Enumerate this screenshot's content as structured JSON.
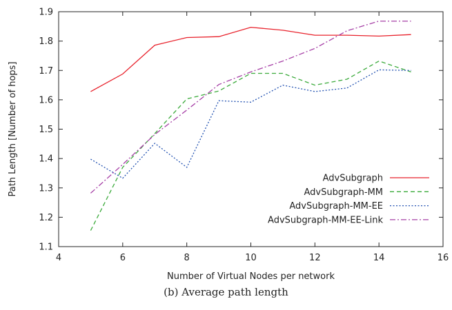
{
  "caption": "(b) Average path length",
  "chart_data": {
    "type": "line",
    "xlabel": "Number of Virtual Nodes per network",
    "ylabel": "Path Length [Number of hops]",
    "xlim": [
      4,
      16
    ],
    "ylim": [
      1.1,
      1.9
    ],
    "xticks": [
      "4",
      "6",
      "8",
      "10",
      "12",
      "14",
      "16"
    ],
    "yticks": [
      "1.1",
      "1.2",
      "1.3",
      "1.4",
      "1.5",
      "1.6",
      "1.7",
      "1.8",
      "1.9"
    ],
    "grid": false,
    "legend_position": "bottom-right",
    "x": [
      5,
      6,
      7,
      8,
      9,
      10,
      11,
      12,
      13,
      14,
      15
    ],
    "series": [
      {
        "name": "AdvSubgraph",
        "color": "#e8202a",
        "dash": "solid",
        "values": [
          1.628,
          1.688,
          1.786,
          1.812,
          1.815,
          1.847,
          1.837,
          1.82,
          1.82,
          1.817,
          1.822
        ]
      },
      {
        "name": "AdvSubgraph-MM",
        "color": "#3aaa3a",
        "dash": "dashed",
        "values": [
          1.155,
          1.37,
          1.485,
          1.603,
          1.63,
          1.69,
          1.69,
          1.65,
          1.67,
          1.732,
          1.695
        ]
      },
      {
        "name": "AdvSubgraph-MM-EE",
        "color": "#1f4fb0",
        "dash": "dotted",
        "values": [
          1.398,
          1.333,
          1.452,
          1.37,
          1.597,
          1.592,
          1.65,
          1.628,
          1.64,
          1.702,
          1.7
        ]
      },
      {
        "name": "AdvSubgraph-MM-EE-Link",
        "color": "#a63fa6",
        "dash": "dashdot",
        "values": [
          1.282,
          1.38,
          1.482,
          1.565,
          1.652,
          1.695,
          1.732,
          1.775,
          1.835,
          1.868,
          1.868
        ]
      }
    ]
  }
}
